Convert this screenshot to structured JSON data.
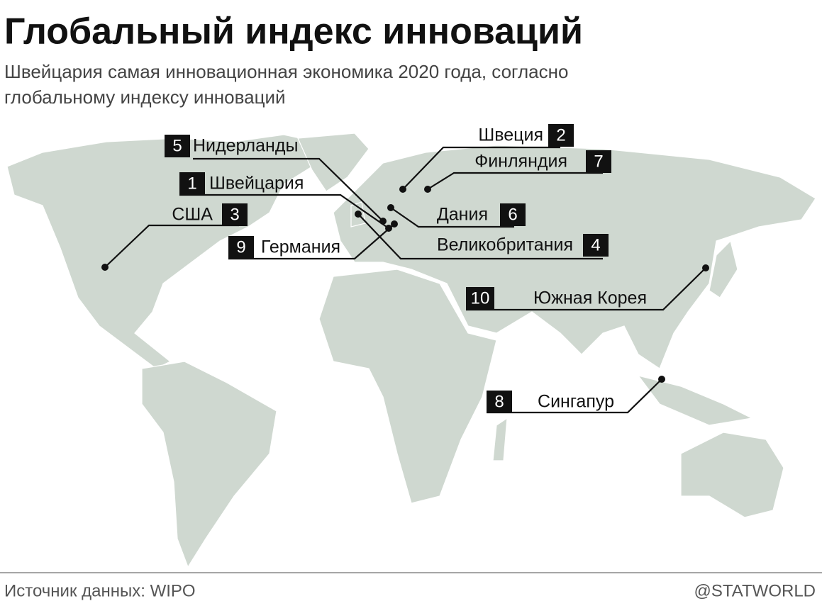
{
  "header": {
    "title": "Глобальный индекс инноваций",
    "subtitle_lines": [
      "Швейцария самая инновационная экономика 2020 года, согласно",
      "глобальному индексу инноваций"
    ]
  },
  "labels": [
    {
      "rank": "5",
      "name": "Нидерланды"
    },
    {
      "rank": "2",
      "name": "Швеция"
    },
    {
      "rank": "7",
      "name": "Финляндия"
    },
    {
      "rank": "1",
      "name": "Швейцария"
    },
    {
      "rank": "3",
      "name": "США"
    },
    {
      "rank": "6",
      "name": "Дания"
    },
    {
      "rank": "9",
      "name": "Германия"
    },
    {
      "rank": "4",
      "name": "Великобритания"
    },
    {
      "rank": "10",
      "name": "Южная Корея"
    },
    {
      "rank": "8",
      "name": "Сингапур"
    }
  ],
  "footer": {
    "source": "Источник данных: WIPO",
    "brand": "@STATWORLD"
  }
}
